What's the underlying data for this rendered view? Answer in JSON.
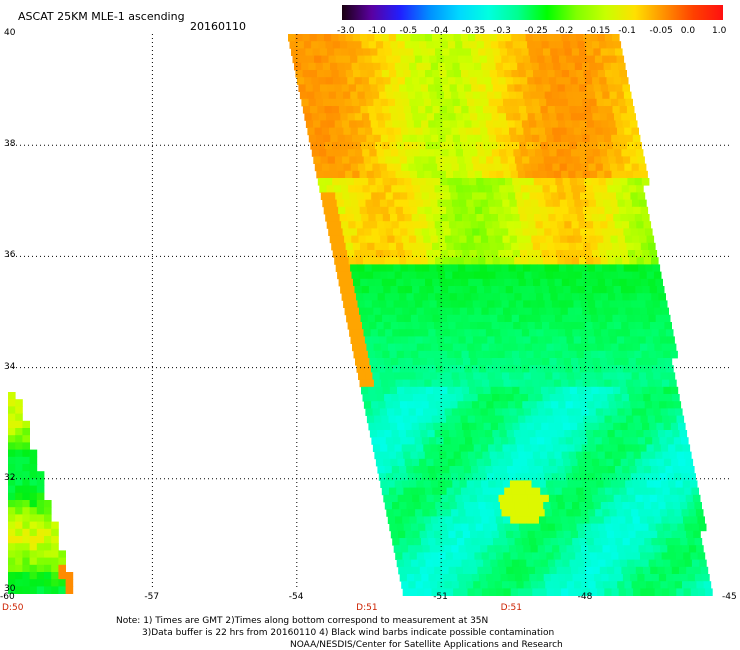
{
  "title": "ASCAT 25KM MLE-1 ascending",
  "date": "20160110",
  "colorbar": {
    "labels": [
      "-3.0",
      "-1.0",
      "-0.5",
      "-0.4",
      "-0.35",
      "-0.3",
      "-0.25",
      "-0.2",
      "-0.15",
      "-0.1",
      "-0.05",
      "0.0",
      "1.0"
    ],
    "colors": [
      "#1a0010",
      "#5a00a0",
      "#2020ff",
      "#0090ff",
      "#00d8ff",
      "#00ffe0",
      "#00ff90",
      "#00ff00",
      "#80ff00",
      "#c8ff00",
      "#ffe000",
      "#ff9000",
      "#ff4000",
      "#ff1010"
    ]
  },
  "map": {
    "lon_range": [
      -60,
      -45
    ],
    "lat_range": [
      30,
      40
    ],
    "lon_ticks": [
      "-60",
      "-57",
      "-54",
      "-51",
      "-48",
      "-45"
    ],
    "lat_ticks": [
      "40",
      "38",
      "36",
      "34",
      "32",
      "30"
    ],
    "time_labels": [
      {
        "lon": -60,
        "text": "D:50"
      },
      {
        "lon": -52.6,
        "text": "D:51"
      },
      {
        "lon": -49.6,
        "text": "D:51"
      }
    ]
  },
  "notes": [
    "Note: 1) Times are GMT 2)Times along bottom correspond to measurement at 35N",
    "3)Data buffer is 22 hrs from 20160110 4) Black wind barbs indicate possible contamination",
    "NOAA/NESDIS/Center for Satellite Applications and Research"
  ]
}
